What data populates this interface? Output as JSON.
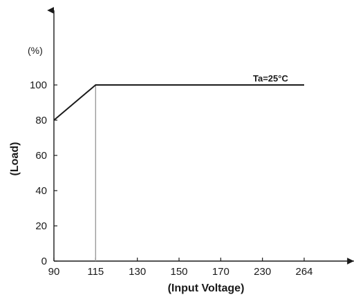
{
  "chart_data": {
    "type": "line",
    "xlabel": "(Input Voltage)",
    "ylabel": "(Load)",
    "y_unit": "(%)",
    "x_ticks": [
      "90",
      "115",
      "130",
      "150",
      "170",
      "230",
      "264"
    ],
    "y_ticks": [
      "0",
      "20",
      "40",
      "60",
      "80",
      "100"
    ],
    "ylim": [
      0,
      100
    ],
    "grid": false,
    "series": [
      {
        "points": [
          {
            "x": "90",
            "y": 80
          },
          {
            "x": "115",
            "y": 100
          },
          {
            "x": "264",
            "y": 100
          }
        ]
      }
    ],
    "reference_line": {
      "x": "115"
    },
    "annotation": "Ta=25°C",
    "colors": {
      "line": "#1a1a1a",
      "axis": "#1a1a1a",
      "reference": "#9a9a9a"
    }
  }
}
